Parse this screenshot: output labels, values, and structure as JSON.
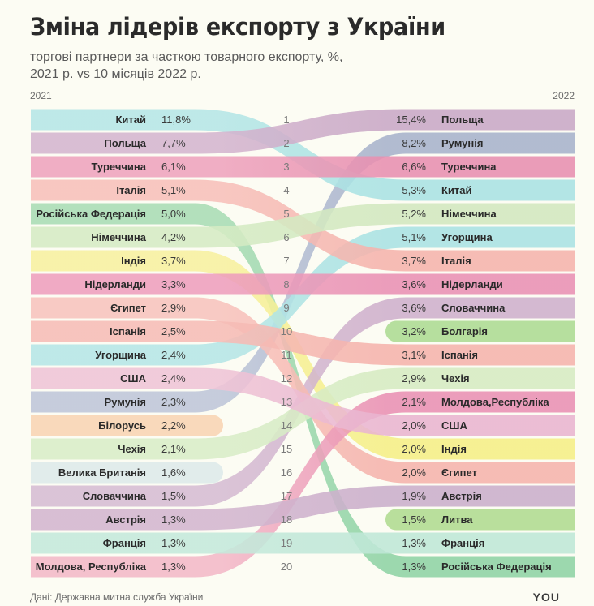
{
  "header": {
    "title": "Зміна лідерів експорту з України",
    "subtitle_line1": "торгові партнери за часткою товарного експорту, %,",
    "subtitle_line2": "2021 р. vs 10 місяців 2022 р."
  },
  "footer": {
    "source": "Дані: Державна митна служба України",
    "logo": "YOU"
  },
  "chart_data": {
    "type": "table",
    "title": "Зміна лідерів експорту з України",
    "subtitle": "торгові партнери за часткою товарного експорту, %, 2021 р. vs 10 місяців 2022 р.",
    "left_label": "2021",
    "right_label": "2022",
    "ranks": [
      "1",
      "2",
      "3",
      "4",
      "5",
      "6",
      "7",
      "8",
      "9",
      "10",
      "11",
      "12",
      "13",
      "14",
      "15",
      "16",
      "17",
      "18",
      "19",
      "20"
    ],
    "left": [
      {
        "country": "Китай",
        "value": "11,8%",
        "color": "#b5e6e6"
      },
      {
        "country": "Польща",
        "value": "7,7%",
        "color": "#d4b5cf"
      },
      {
        "country": "Туреччина",
        "value": "6,1%",
        "color": "#eea3bd"
      },
      {
        "country": "Італія",
        "value": "5,1%",
        "color": "#f7c0ba"
      },
      {
        "country": "Російська Федерація",
        "value": "5,0%",
        "color": "#a9dcb5"
      },
      {
        "country": "Німеччина",
        "value": "4,2%",
        "color": "#d5ebc4"
      },
      {
        "country": "Індія",
        "value": "3,7%",
        "color": "#f7f0a0"
      },
      {
        "country": "Нідерланди",
        "value": "3,3%",
        "color": "#ee9fbd"
      },
      {
        "country": "Єгипет",
        "value": "2,9%",
        "color": "#f8c3bd"
      },
      {
        "country": "Іспанія",
        "value": "2,5%",
        "color": "#f6bcb6"
      },
      {
        "country": "Угорщина",
        "value": "2,4%",
        "color": "#b6e6e6"
      },
      {
        "country": "США",
        "value": "2,4%",
        "color": "#efc4d6"
      },
      {
        "country": "Румунія",
        "value": "2,3%",
        "color": "#bec6d9"
      },
      {
        "country": "Білорусь",
        "value": "2,2%",
        "color": "#f8d5b5"
      },
      {
        "country": "Чехія",
        "value": "2,1%",
        "color": "#d9edc8"
      },
      {
        "country": "Велика Британія",
        "value": "1,6%",
        "color": "#deeaea"
      },
      {
        "country": "Словаччина",
        "value": "1,5%",
        "color": "#d6bcd3"
      },
      {
        "country": "Австрія",
        "value": "1,3%",
        "color": "#d3b6cf"
      },
      {
        "country": "Франція",
        "value": "1,3%",
        "color": "#c4e9db"
      },
      {
        "country": "Молдова, Республіка",
        "value": "1,3%",
        "color": "#f3b9c8"
      }
    ],
    "right": [
      {
        "country": "Польща",
        "value": "15,4%",
        "color": "#c9a8c6"
      },
      {
        "country": "Румунія",
        "value": "8,2%",
        "color": "#a7b2cb"
      },
      {
        "country": "Туреччина",
        "value": "6,6%",
        "color": "#e88fb0"
      },
      {
        "country": "Китай",
        "value": "5,3%",
        "color": "#a9e2e3"
      },
      {
        "country": "Німеччина",
        "value": "5,2%",
        "color": "#d2e8bf"
      },
      {
        "country": "Угорщина",
        "value": "5,1%",
        "color": "#a9e2e3"
      },
      {
        "country": "Італія",
        "value": "3,7%",
        "color": "#f5b3ac"
      },
      {
        "country": "Нідерланди",
        "value": "3,6%",
        "color": "#e990b3"
      },
      {
        "country": "Словаччина",
        "value": "3,6%",
        "color": "#cfb0cc"
      },
      {
        "country": "Болгарія",
        "value": "3,2%",
        "color": "#b6df9e"
      },
      {
        "country": "Іспанія",
        "value": "3,1%",
        "color": "#f5b3ac"
      },
      {
        "country": "Чехія",
        "value": "2,9%",
        "color": "#d6ebc2"
      },
      {
        "country": "Молдова,Республіка",
        "value": "2,1%",
        "color": "#e990b3"
      },
      {
        "country": "США",
        "value": "2,0%",
        "color": "#e9b4d0"
      },
      {
        "country": "Індія",
        "value": "2,0%",
        "color": "#f5ef86"
      },
      {
        "country": "Єгипет",
        "value": "2,0%",
        "color": "#f5b3ac"
      },
      {
        "country": "Австрія",
        "value": "1,9%",
        "color": "#caaecb"
      },
      {
        "country": "Литва",
        "value": "1,5%",
        "color": "#b9df9c"
      },
      {
        "country": "Франція",
        "value": "1,3%",
        "color": "#bfe7d7"
      },
      {
        "country": "Російська Федерація",
        "value": "1,3%",
        "color": "#8fd3a5"
      }
    ],
    "links": [
      {
        "from": 1,
        "to": 4
      },
      {
        "from": 2,
        "to": 1
      },
      {
        "from": 3,
        "to": 3
      },
      {
        "from": 4,
        "to": 7
      },
      {
        "from": 5,
        "to": 20
      },
      {
        "from": 6,
        "to": 5
      },
      {
        "from": 7,
        "to": 15
      },
      {
        "from": 8,
        "to": 8
      },
      {
        "from": 9,
        "to": 16
      },
      {
        "from": 10,
        "to": 11
      },
      {
        "from": 11,
        "to": 6
      },
      {
        "from": 12,
        "to": 14
      },
      {
        "from": 13,
        "to": 2
      },
      {
        "from": 15,
        "to": 12
      },
      {
        "from": 17,
        "to": 9
      },
      {
        "from": 18,
        "to": 17
      },
      {
        "from": 19,
        "to": 19
      },
      {
        "from": 20,
        "to": 13
      }
    ],
    "dropped_out": [
      "Білорусь",
      "Велика Британія"
    ],
    "new_entries": [
      "Болгарія",
      "Литва"
    ]
  }
}
